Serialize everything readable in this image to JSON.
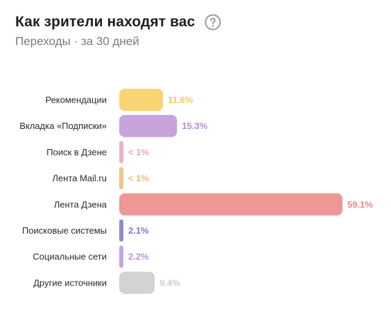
{
  "header": {
    "title": "Как зрители находят вас",
    "subtitle": "Переходы · за 30 дней",
    "help_icon": "question-circle-icon"
  },
  "chart_data": {
    "type": "bar",
    "orientation": "horizontal",
    "categories": [
      "Рекомендации",
      "Вкладка «Подписки»",
      "Поиск в Дзене",
      "Лента Mail.ru",
      "Лента Дзена",
      "Поисковые системы",
      "Социальные сети",
      "Другие источники"
    ],
    "values": [
      11.6,
      15.3,
      0.5,
      0.5,
      59.1,
      2.1,
      2.2,
      9.4
    ],
    "value_labels": [
      "11.6%",
      "15.3%",
      "< 1%",
      "< 1%",
      "59.1%",
      "2.1%",
      "2.2%",
      "9.4%"
    ],
    "colors": [
      "#f8d474",
      "#c6a3dd",
      "#efb0c4",
      "#f1c487",
      "#ef9794",
      "#8e8bd0",
      "#c7a5e0",
      "#d3d3d3"
    ],
    "label_colors": [
      "#f3c75a",
      "#b08bd2",
      "#e8a6bb",
      "#ecbb7a",
      "#e88886",
      "#7f7cc7",
      "#b893d6",
      "#cfcfcf"
    ],
    "xlim": [
      0,
      60
    ],
    "grid": false,
    "legend": "none"
  }
}
